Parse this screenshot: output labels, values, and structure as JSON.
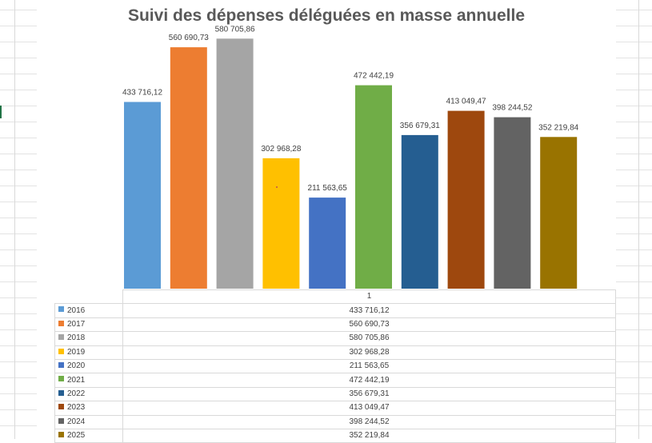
{
  "chart_data": {
    "type": "bar",
    "title": "Suivi des dépenses déléguées en masse annuelle",
    "categories": [
      "1"
    ],
    "series": [
      {
        "name": "2016",
        "value": 433716.12,
        "label": "433 716,12",
        "color": "#5b9bd5"
      },
      {
        "name": "2017",
        "value": 560690.73,
        "label": "560 690,73",
        "color": "#ed7d31"
      },
      {
        "name": "2018",
        "value": 580705.86,
        "label": "580 705,86",
        "color": "#a5a5a5"
      },
      {
        "name": "2019",
        "value": 302968.28,
        "label": "302 968,28",
        "color": "#ffc000"
      },
      {
        "name": "2020",
        "value": 211563.65,
        "label": "211 563,65",
        "color": "#4472c4"
      },
      {
        "name": "2021",
        "value": 472442.19,
        "label": "472 442,19",
        "color": "#70ad47"
      },
      {
        "name": "2022",
        "value": 356679.31,
        "label": "356 679,31",
        "color": "#255e91"
      },
      {
        "name": "2023",
        "value": 413049.47,
        "label": "413 049,47",
        "color": "#9e480e"
      },
      {
        "name": "2024",
        "value": 398244.52,
        "label": "398 244,52",
        "color": "#636363"
      },
      {
        "name": "2025",
        "value": 352219.84,
        "label": "352 219,84",
        "color": "#997300"
      }
    ],
    "ylim": [
      0,
      650000
    ],
    "grid": false,
    "legend": "data-table"
  }
}
